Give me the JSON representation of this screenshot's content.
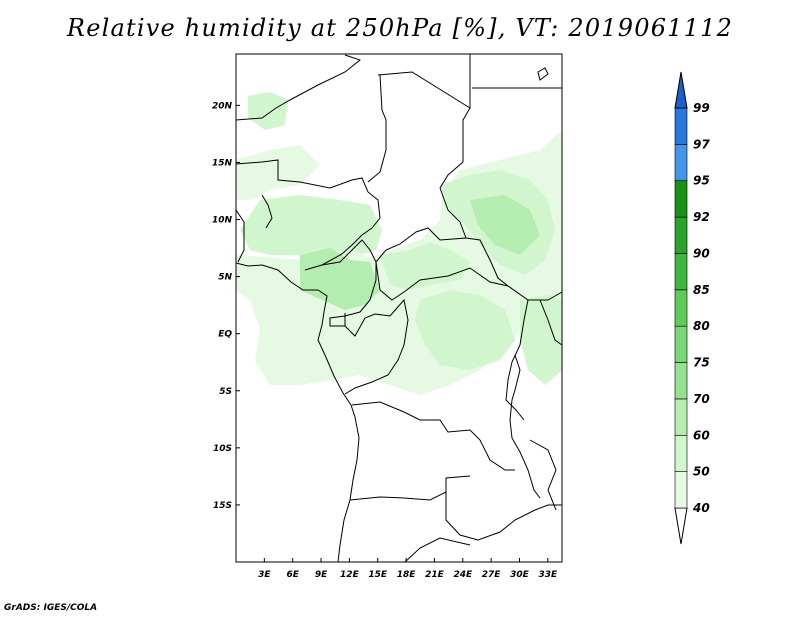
{
  "title": "Relative humidity at 250hPa [%], VT: 2019061112",
  "footer": "GrADS: IGES/COLA",
  "map": {
    "lon_range": [
      0,
      34.5
    ],
    "lat_range": [
      -20,
      24.5
    ],
    "lon_ticks": [
      "3E",
      "6E",
      "9E",
      "12E",
      "15E",
      "18E",
      "21E",
      "24E",
      "27E",
      "30E",
      "33E"
    ],
    "lat_ticks": [
      "20N",
      "15N",
      "10N",
      "5N",
      "EQ",
      "5S",
      "10S",
      "15S"
    ]
  },
  "colorbar": {
    "levels": [
      "40",
      "50",
      "60",
      "70",
      "75",
      "80",
      "85",
      "90",
      "92",
      "95",
      "97",
      "99"
    ],
    "colors": [
      "#ffffff",
      "#e6f9e3",
      "#d1f5cd",
      "#b4edb0",
      "#96e290",
      "#79d875",
      "#5fcb5b",
      "#3fb73f",
      "#2aa42a",
      "#169316",
      "#4396ec",
      "#2877dd",
      "#1b5fcb"
    ]
  }
}
